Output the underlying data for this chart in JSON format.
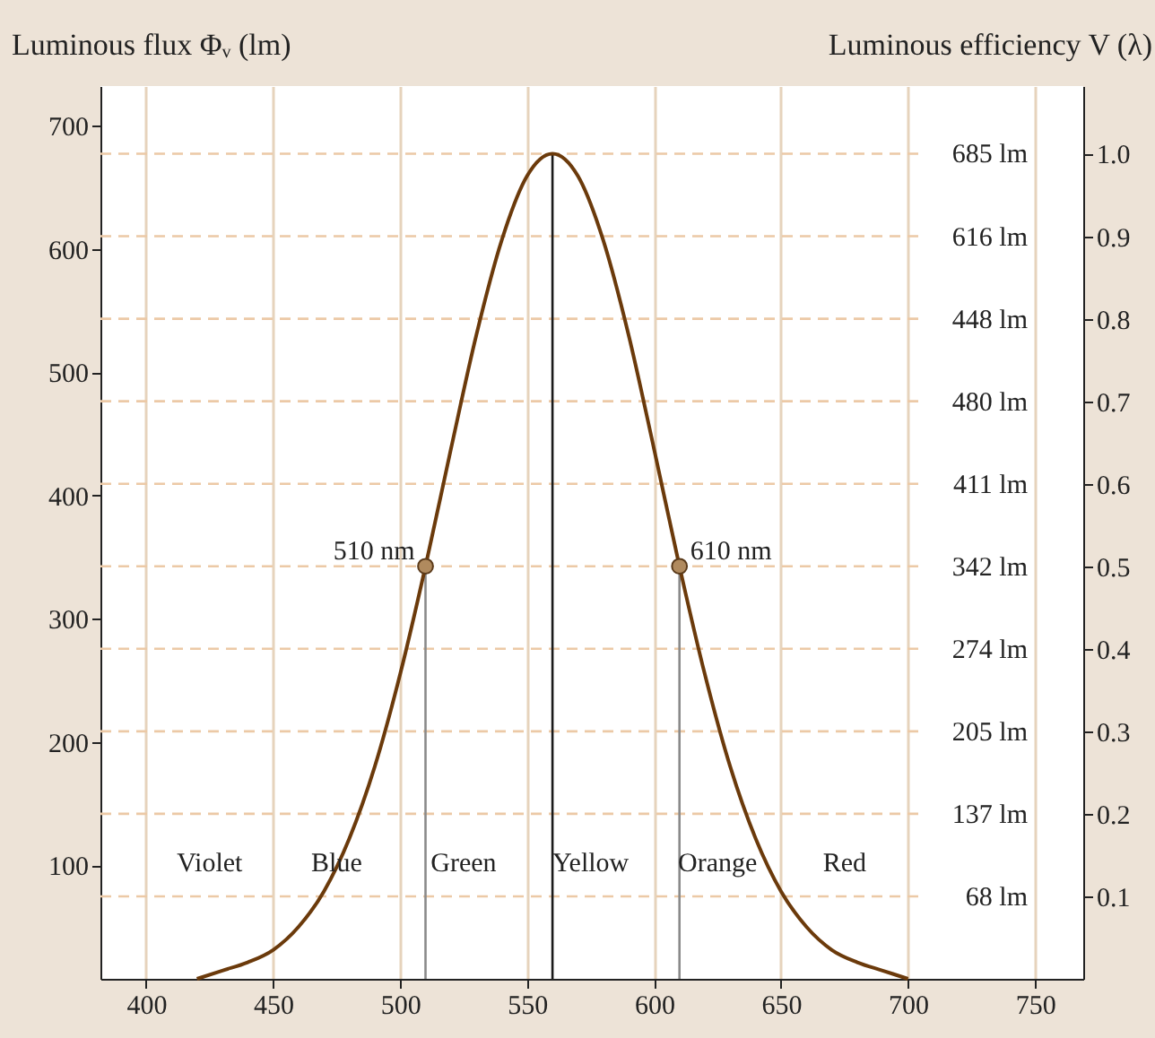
{
  "chart_data": {
    "type": "line",
    "xlim": [
      382,
      769
    ],
    "xticks": [
      400,
      450,
      500,
      550,
      600,
      650,
      700,
      750
    ],
    "ylim": [
      8,
      732
    ],
    "yticks": [
      100,
      200,
      300,
      400,
      500,
      600,
      700
    ],
    "ylabel": "Luminous flux Φᵥ (lm)",
    "y2label": "Luminous efficiency V (λ)",
    "y2lim": [
      0,
      1.082
    ],
    "y2ticks": [
      0.1,
      0.2,
      0.3,
      0.4,
      0.5,
      0.6,
      0.7,
      0.8,
      0.9,
      {
        "value": 1,
        "label": "1.0"
      }
    ],
    "grid": "x",
    "series": [
      {
        "axis": "y2",
        "color": "#6b3a0b",
        "x": [
          420,
          430,
          440,
          450,
          460,
          470,
          480,
          490,
          500,
          510,
          520,
          530,
          540,
          550,
          560,
          570,
          580,
          590,
          600,
          610,
          620,
          630,
          640,
          650,
          660,
          670,
          680,
          690,
          700
        ],
        "values": [
          0,
          0.01,
          0.02,
          0.035,
          0.063,
          0.106,
          0.17,
          0.257,
          0.369,
          0.5,
          0.642,
          0.78,
          0.895,
          0.973,
          1.0,
          0.973,
          0.895,
          0.78,
          0.642,
          0.5,
          0.369,
          0.257,
          0.17,
          0.106,
          0.063,
          0.035,
          0.02,
          0.01,
          0
        ]
      },
      {
        "type": "scatter",
        "axis": "y2",
        "color": "#b08a5e",
        "marker": "circle",
        "x": [
          510,
          610
        ],
        "values": [
          0.5,
          0.5
        ]
      }
    ],
    "ref_lines": [
      {
        "axis": "y2",
        "value": 1.0,
        "label": "685 lm",
        "color": "#ecc9a6",
        "line_style": "dashed"
      },
      {
        "axis": "y2",
        "value": 0.9,
        "label": "616 lm",
        "color": "#ecc9a6",
        "line_style": "dashed"
      },
      {
        "axis": "y2",
        "value": 0.8,
        "label": "448 lm",
        "color": "#ecc9a6",
        "line_style": "dashed"
      },
      {
        "axis": "y2",
        "value": 0.7,
        "label": "480 lm",
        "color": "#ecc9a6",
        "line_style": "dashed"
      },
      {
        "axis": "y2",
        "value": 0.6,
        "label": "411 lm",
        "color": "#ecc9a6",
        "line_style": "dashed"
      },
      {
        "axis": "y2",
        "value": 0.5,
        "label": "342 lm",
        "color": "#ecc9a6",
        "line_style": "dashed"
      },
      {
        "axis": "y2",
        "value": 0.4,
        "label": "274 lm",
        "color": "#ecc9a6",
        "line_style": "dashed"
      },
      {
        "axis": "y2",
        "value": 0.3,
        "label": "205 lm",
        "color": "#ecc9a6",
        "line_style": "dashed"
      },
      {
        "axis": "y2",
        "value": 0.2,
        "label": "137 lm",
        "color": "#ecc9a6",
        "line_style": "dashed"
      },
      {
        "axis": "y2",
        "value": 0.1,
        "label": "68 lm",
        "color": "#ecc9a6",
        "line_style": "dashed"
      },
      {
        "axis": "x",
        "value": 510,
        "color": "#8a8a8a",
        "line_style": "solid"
      },
      {
        "axis": "x",
        "value": 560,
        "color": "#1a1a1a",
        "line_style": "solid"
      },
      {
        "axis": "x",
        "value": 610,
        "color": "#8a8a8a",
        "line_style": "solid"
      }
    ],
    "annotations": [
      "510 nm",
      "610 nm",
      "Violet",
      "Blue",
      "Green",
      "Yellow",
      "Orange",
      "Red"
    ]
  }
}
